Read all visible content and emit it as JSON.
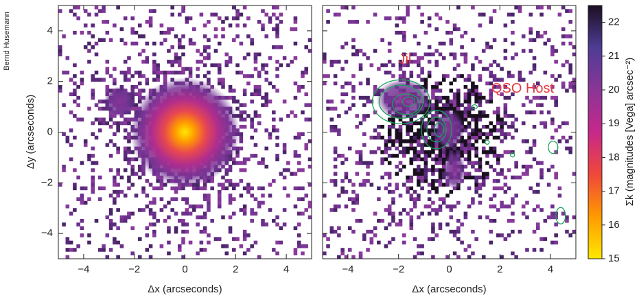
{
  "credit": "Bernd Husemann",
  "chart_data": [
    {
      "type": "image",
      "xlabel": "Δx (arcseconds)",
      "ylabel": "Δy (arcseconds)",
      "xlim": [
        -5,
        5
      ],
      "ylim": [
        -5,
        5
      ],
      "xticks": [
        {
          "value": -4,
          "label": "−4"
        },
        {
          "value": -2,
          "label": "−2"
        },
        0,
        2,
        4
      ],
      "yticks": [
        {
          "value": -4,
          "label": "−4"
        },
        {
          "value": -2,
          "label": "−2"
        },
        0,
        2,
        4
      ]
    },
    {
      "type": "image",
      "xlabel": "Δx (arcseconds)",
      "xlim": [
        -5,
        5
      ],
      "ylim": [
        -5,
        5
      ],
      "xticks": [
        {
          "value": -4,
          "label": "−4"
        },
        {
          "value": -2,
          "label": "−2"
        },
        0,
        2,
        4
      ],
      "yticks": [
        -4,
        -2,
        0,
        2,
        4
      ],
      "annotations": [
        {
          "text": "Jil",
          "color": "#e8383d"
        },
        {
          "text": "QSO Host",
          "color": "#e8383d"
        }
      ],
      "contour_color": "#1aa35a"
    },
    {
      "type": "colorbar",
      "label": "Σk (magnitudes [Vega] arcsec⁻²)",
      "ylim": [
        15,
        22.5
      ],
      "yticks": [
        15,
        16,
        17,
        18,
        19,
        20,
        21,
        22
      ],
      "colormap": [
        "#ffe800",
        "#ff9a00",
        "#f0473a",
        "#c7288a",
        "#8a3597",
        "#4e3c95",
        "#1c0f22"
      ]
    }
  ]
}
